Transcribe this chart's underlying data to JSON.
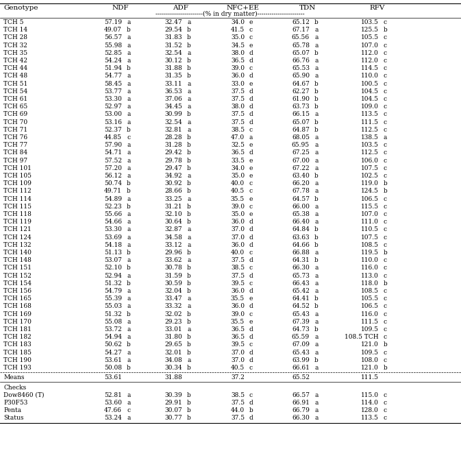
{
  "col_headers": [
    "Genotype",
    "NDF",
    "",
    "ADF",
    "",
    "NFC+EE",
    "",
    "TDN",
    "",
    "RFV",
    ""
  ],
  "sub_header": "-----------------------(% in dry matter)-----------------------",
  "rows": [
    [
      "TCH 5",
      "57.19",
      "a",
      "32.47",
      "a",
      "34.0",
      "e",
      "65.12",
      "b",
      "103.5",
      "c"
    ],
    [
      "TCH 14",
      "49.07",
      "b",
      "29.54",
      "b",
      "41.5",
      "c",
      "67.17",
      "a",
      "125.5",
      "b"
    ],
    [
      "TCH 28",
      "56.57",
      "a",
      "31.83",
      "b",
      "35.0",
      "c",
      "65.56",
      "a",
      "105.5",
      "c"
    ],
    [
      "TCH 32",
      "55.98",
      "a",
      "31.52",
      "b",
      "34.5",
      "e",
      "65.78",
      "a",
      "107.0",
      "c"
    ],
    [
      "TCH 35",
      "52.85",
      "a",
      "32.54",
      "a",
      "38.0",
      "d",
      "65.07",
      "b",
      "112.0",
      "c"
    ],
    [
      "TCH 42",
      "54.24",
      "a",
      "30.12",
      "b",
      "36.5",
      "d",
      "66.76",
      "a",
      "112.0",
      "c"
    ],
    [
      "TCH 44",
      "51.94",
      "b",
      "31.88",
      "b",
      "39.0",
      "c",
      "65.53",
      "a",
      "114.5",
      "c"
    ],
    [
      "TCH 48",
      "54.77",
      "a",
      "31.35",
      "b",
      "36.0",
      "d",
      "65.90",
      "a",
      "110.0",
      "c"
    ],
    [
      "TCH 51",
      "58.45",
      "a",
      "33.11",
      "a",
      "33.0",
      "e",
      "64.67",
      "b",
      "100.5",
      "c"
    ],
    [
      "TCH 54",
      "53.77",
      "a",
      "36.53",
      "a",
      "37.5",
      "d",
      "62.27",
      "b",
      "104.5",
      "c"
    ],
    [
      "TCH 61",
      "53.30",
      "a",
      "37.06",
      "a",
      "37.5",
      "d",
      "61.90",
      "b",
      "104.5",
      "c"
    ],
    [
      "TCH 65",
      "52.97",
      "a",
      "34.45",
      "a",
      "38.0",
      "d",
      "63.73",
      "b",
      "109.0",
      "c"
    ],
    [
      "TCH 69",
      "53.00",
      "a",
      "30.99",
      "b",
      "37.5",
      "d",
      "66.15",
      "a",
      "113.5",
      "c"
    ],
    [
      "TCH 70",
      "53.16",
      "a",
      "32.54",
      "a",
      "37.5",
      "d",
      "65.07",
      "b",
      "111.5",
      "c"
    ],
    [
      "TCH 71",
      "52.37",
      "b",
      "32.81",
      "a",
      "38.5",
      "c",
      "64.87",
      "b",
      "112.5",
      "c"
    ],
    [
      "TCH 76",
      "44.85",
      "c",
      "28.28",
      "b",
      "47.0",
      "a",
      "68.05",
      "a",
      "138.5",
      "a"
    ],
    [
      "TCH 77",
      "57.90",
      "a",
      "31.28",
      "b",
      "32.5",
      "e",
      "65.95",
      "a",
      "103.5",
      "c"
    ],
    [
      "TCH 84",
      "54.71",
      "a",
      "29.42",
      "b",
      "36.5",
      "d",
      "67.25",
      "a",
      "112.5",
      "c"
    ],
    [
      "TCH 97",
      "57.52",
      "a",
      "29.78",
      "b",
      "33.5",
      "e",
      "67.00",
      "a",
      "106.0",
      "c"
    ],
    [
      "TCH 101",
      "57.20",
      "a",
      "29.47",
      "b",
      "34.0",
      "e",
      "67.22",
      "a",
      "107.5",
      "c"
    ],
    [
      "TCH 105",
      "56.12",
      "a",
      "34.92",
      "a",
      "35.0",
      "e",
      "63.40",
      "b",
      "102.5",
      "c"
    ],
    [
      "TCH 109",
      "50.74",
      "b",
      "30.92",
      "b",
      "40.0",
      "c",
      "66.20",
      "a",
      "119.0",
      "b"
    ],
    [
      "TCH 112",
      "49.71",
      "b",
      "28.66",
      "b",
      "40.5",
      "c",
      "67.78",
      "a",
      "124.5",
      "b"
    ],
    [
      "TCH 114",
      "54.89",
      "a",
      "33.25",
      "a",
      "35.5",
      "e",
      "64.57",
      "b",
      "106.5",
      "c"
    ],
    [
      "TCH 115",
      "52.23",
      "b",
      "31.21",
      "b",
      "39.0",
      "c",
      "66.00",
      "a",
      "115.5",
      "c"
    ],
    [
      "TCH 118",
      "55.66",
      "a",
      "32.10",
      "b",
      "35.0",
      "e",
      "65.38",
      "a",
      "107.0",
      "c"
    ],
    [
      "TCH 119",
      "54.66",
      "a",
      "30.64",
      "b",
      "36.0",
      "d",
      "66.40",
      "a",
      "111.0",
      "c"
    ],
    [
      "TCH 121",
      "53.30",
      "a",
      "32.87",
      "a",
      "37.0",
      "d",
      "64.84",
      "b",
      "110.5",
      "c"
    ],
    [
      "TCH 124",
      "53.69",
      "a",
      "34.58",
      "a",
      "37.0",
      "d",
      "63.63",
      "b",
      "107.5",
      "c"
    ],
    [
      "TCH 132",
      "54.18",
      "a",
      "33.12",
      "a",
      "36.0",
      "d",
      "64.66",
      "b",
      "108.5",
      "c"
    ],
    [
      "TCH 140",
      "51.13",
      "b",
      "29.96",
      "b",
      "40.0",
      "c",
      "66.88",
      "a",
      "119.5",
      "b"
    ],
    [
      "TCH 148",
      "53.07",
      "a",
      "33.62",
      "a",
      "37.5",
      "d",
      "64.31",
      "b",
      "110.0",
      "c"
    ],
    [
      "TCH 151",
      "52.10",
      "b",
      "30.78",
      "b",
      "38.5",
      "c",
      "66.30",
      "a",
      "116.0",
      "c"
    ],
    [
      "TCH 152",
      "52.94",
      "a",
      "31.59",
      "b",
      "37.5",
      "d",
      "65.73",
      "a",
      "113.0",
      "c"
    ],
    [
      "TCH 154",
      "51.32",
      "b",
      "30.59",
      "b",
      "39.5",
      "c",
      "66.43",
      "a",
      "118.0",
      "b"
    ],
    [
      "TCH 156",
      "54.79",
      "a",
      "32.04",
      "b",
      "36.0",
      "d",
      "65.42",
      "a",
      "108.5",
      "c"
    ],
    [
      "TCH 165",
      "55.39",
      "a",
      "33.47",
      "a",
      "35.5",
      "e",
      "64.41",
      "b",
      "105.5",
      "c"
    ],
    [
      "TCH 168",
      "55.03",
      "a",
      "33.32",
      "a",
      "36.0",
      "d",
      "64.52",
      "b",
      "106.5",
      "c"
    ],
    [
      "TCH 169",
      "51.32",
      "b",
      "32.02",
      "b",
      "39.0",
      "c",
      "65.43",
      "a",
      "116.0",
      "c"
    ],
    [
      "TCH 170",
      "55.08",
      "a",
      "29.23",
      "b",
      "35.5",
      "e",
      "67.39",
      "a",
      "111.5",
      "c"
    ],
    [
      "TCH 181",
      "53.72",
      "a",
      "33.01",
      "a",
      "36.5",
      "d",
      "64.73",
      "b",
      "109.5",
      "c"
    ],
    [
      "TCH 182",
      "54.94",
      "a",
      "31.80",
      "b",
      "36.5",
      "d",
      "65.59",
      "a",
      "108.5 TCH",
      "c"
    ],
    [
      "TCH 183",
      "50.62",
      "b",
      "29.65",
      "b",
      "39.5",
      "c",
      "67.09",
      "a",
      "121.0",
      "b"
    ],
    [
      "TCH 185",
      "54.27",
      "a",
      "32.01",
      "b",
      "37.0",
      "d",
      "65.43",
      "a",
      "109.5",
      "c"
    ],
    [
      "TCH 190",
      "53.61",
      "a",
      "34.08",
      "a",
      "37.0",
      "d",
      "63.99",
      "b",
      "108.0",
      "c"
    ],
    [
      "TCH 193",
      "50.08",
      "b",
      "30.34",
      "b",
      "40.5",
      "c",
      "66.61",
      "a",
      "121.0",
      "b"
    ]
  ],
  "means_row": [
    "Means",
    "53.61",
    "",
    "31.88",
    "",
    "37.2",
    "",
    "65.52",
    "",
    "111.5",
    ""
  ],
  "checks_header": "Checks",
  "checks_rows": [
    [
      "Dow8460 (T)",
      "52.81",
      "a",
      "30.39",
      "b",
      "38.5",
      "c",
      "66.57",
      "a",
      "115.0",
      "c"
    ],
    [
      "P30F53",
      "53.60",
      "a",
      "29.91",
      "b",
      "37.5",
      "d",
      "66.91",
      "a",
      "114.0",
      "c"
    ],
    [
      "Penta",
      "47.66",
      "c",
      "30.07",
      "b",
      "44.0",
      "b",
      "66.79",
      "a",
      "128.0",
      "c"
    ],
    [
      "Status",
      "53.24",
      "a",
      "30.77",
      "b",
      "37.5",
      "d",
      "66.30",
      "a",
      "113.5",
      "c"
    ]
  ],
  "font_size": 6.5,
  "bg_color": "white"
}
